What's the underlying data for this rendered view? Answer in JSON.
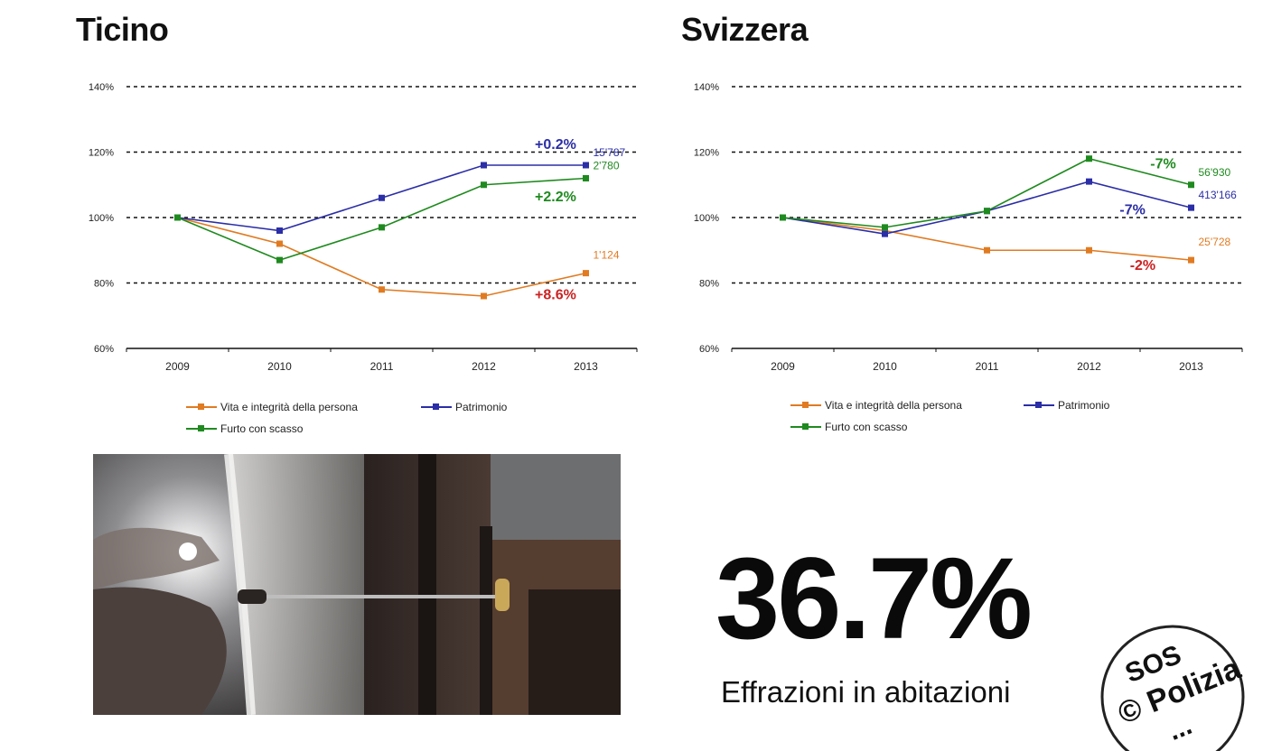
{
  "charts": [
    {
      "title": "Ticino",
      "chart_data": {
        "type": "line",
        "categories": [
          "2009",
          "2010",
          "2011",
          "2012",
          "2013"
        ],
        "ylim": [
          60,
          140
        ],
        "yticks": [
          "60%",
          "80%",
          "100%",
          "120%",
          "140%"
        ],
        "grid": true,
        "series": [
          {
            "name": "Vita e integrità della persona",
            "color": "#e07b22",
            "values": [
              100,
              92,
              78,
              76,
              83
            ],
            "end_label": "1'124"
          },
          {
            "name": "Patrimonio",
            "color": "#2b2ea6",
            "values": [
              100,
              96,
              106,
              116,
              116
            ],
            "end_label": "15'787"
          },
          {
            "name": "Furto con scasso",
            "color": "#1f8a1f",
            "values": [
              100,
              87,
              97,
              110,
              112
            ],
            "end_label": "2'780"
          }
        ],
        "annotations": [
          {
            "text": "+0.2%",
            "color": "#2b2ea6",
            "x": 3.5,
            "y": 121
          },
          {
            "text": "+2.2%",
            "color": "#1f8a1f",
            "x": 3.5,
            "y": 105
          },
          {
            "text": "+8.6%",
            "color": "#cc2222",
            "x": 3.5,
            "y": 75
          }
        ]
      }
    },
    {
      "title": "Svizzera",
      "chart_data": {
        "type": "line",
        "categories": [
          "2009",
          "2010",
          "2011",
          "2012",
          "2013"
        ],
        "ylim": [
          60,
          140
        ],
        "yticks": [
          "60%",
          "80%",
          "100%",
          "120%",
          "140%"
        ],
        "grid": true,
        "series": [
          {
            "name": "Vita e integrità della persona",
            "color": "#e07b22",
            "values": [
              100,
              96,
              90,
              90,
              87
            ],
            "end_label": "25'728"
          },
          {
            "name": "Patrimonio",
            "color": "#2b2ea6",
            "values": [
              100,
              95,
              102,
              111,
              103
            ],
            "end_label": "413'166"
          },
          {
            "name": "Furto con scasso",
            "color": "#1f8a1f",
            "values": [
              100,
              97,
              102,
              118,
              110
            ],
            "end_label": "56'930"
          }
        ],
        "annotations": [
          {
            "text": "-7%",
            "color": "#1f8a1f",
            "x": 3.6,
            "y": 115
          },
          {
            "text": "-7%",
            "color": "#2b2ea6",
            "x": 3.3,
            "y": 101
          },
          {
            "text": "-2%",
            "color": "#cc2222",
            "x": 3.4,
            "y": 84
          }
        ]
      }
    }
  ],
  "headline": {
    "value": "36.7%",
    "caption": "Effrazioni in abitazioni"
  },
  "stamp": {
    "line1": "SOS",
    "line2": "© Polizia",
    "line3": "..."
  }
}
